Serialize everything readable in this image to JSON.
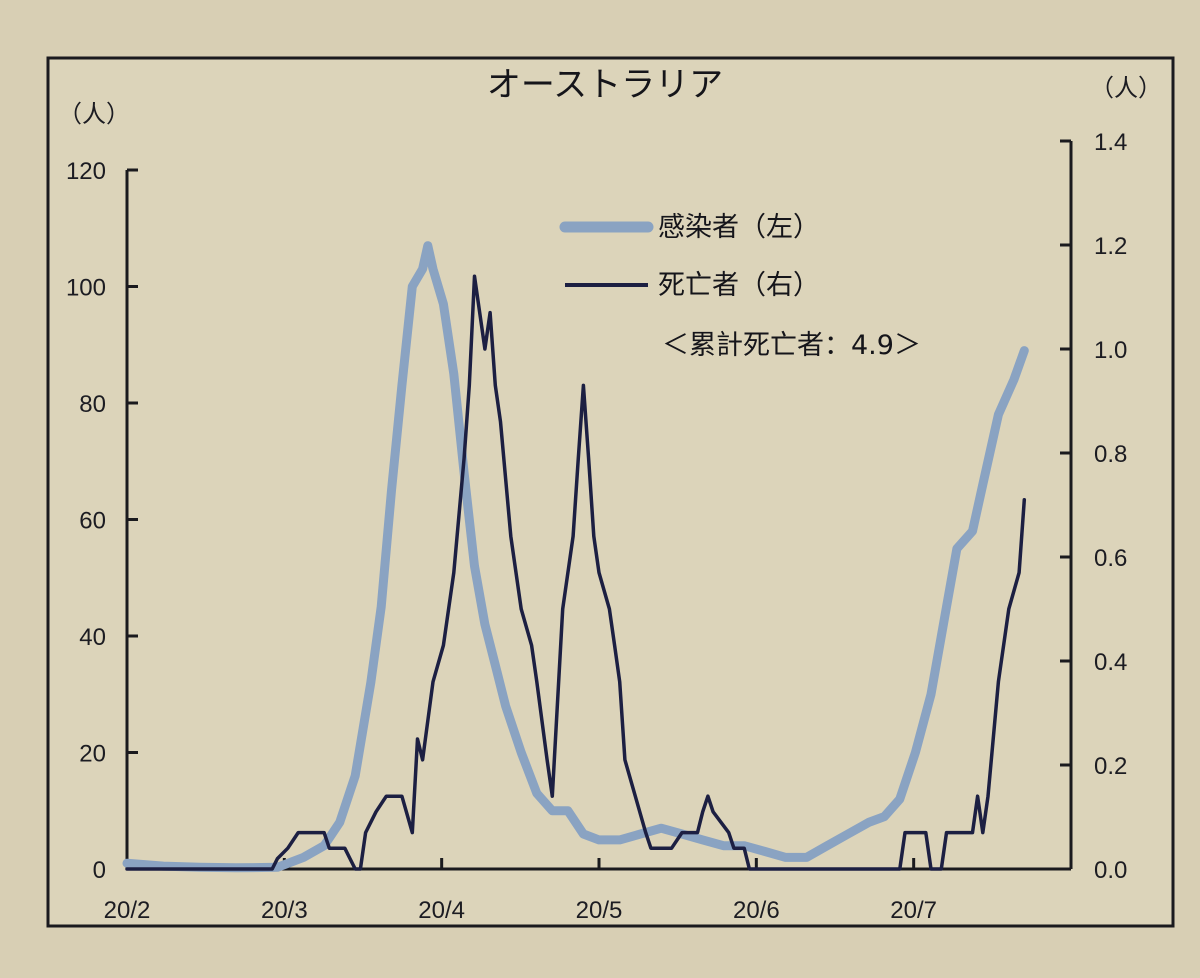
{
  "chart_data": {
    "type": "line",
    "title": "オーストラリア",
    "left_unit": "（人）",
    "right_unit": "（人）",
    "x_ticks": [
      "20/2",
      "20/3",
      "20/4",
      "20/5",
      "20/6",
      "20/7"
    ],
    "y_left": {
      "range": [
        0,
        120
      ],
      "ticks": [
        "0",
        "20",
        "40",
        "60",
        "80",
        "100",
        "120"
      ]
    },
    "y_right": {
      "range": [
        0,
        1.4
      ],
      "ticks": [
        "0.0",
        "0.2",
        "0.4",
        "0.6",
        "0.8",
        "1.0",
        "1.2",
        "1.4"
      ]
    },
    "grid": false,
    "legend_position": "top-center",
    "annotation": "＜累計死亡者：4.9＞",
    "series": [
      {
        "name": "感染者（左）",
        "axis": "left",
        "color": "#8aa3c2",
        "points": [
          [
            "2020-02-01",
            1
          ],
          [
            "2020-02-08",
            0.5
          ],
          [
            "2020-02-15",
            0.3
          ],
          [
            "2020-02-22",
            0.2
          ],
          [
            "2020-03-01",
            0.3
          ],
          [
            "2020-03-06",
            2
          ],
          [
            "2020-03-10",
            4
          ],
          [
            "2020-03-13",
            8
          ],
          [
            "2020-03-16",
            16
          ],
          [
            "2020-03-19",
            32
          ],
          [
            "2020-03-21",
            45
          ],
          [
            "2020-03-23",
            65
          ],
          [
            "2020-03-25",
            83
          ],
          [
            "2020-03-27",
            100
          ],
          [
            "2020-03-29",
            103
          ],
          [
            "2020-03-30",
            107
          ],
          [
            "2020-03-31",
            103
          ],
          [
            "2020-04-02",
            97
          ],
          [
            "2020-04-04",
            85
          ],
          [
            "2020-04-06",
            68
          ],
          [
            "2020-04-08",
            52
          ],
          [
            "2020-04-10",
            42
          ],
          [
            "2020-04-12",
            35
          ],
          [
            "2020-04-14",
            28
          ],
          [
            "2020-04-17",
            20
          ],
          [
            "2020-04-20",
            13
          ],
          [
            "2020-04-23",
            10
          ],
          [
            "2020-04-26",
            10
          ],
          [
            "2020-04-29",
            6
          ],
          [
            "2020-05-02",
            5
          ],
          [
            "2020-05-06",
            5
          ],
          [
            "2020-05-10",
            6
          ],
          [
            "2020-05-14",
            7
          ],
          [
            "2020-05-18",
            6
          ],
          [
            "2020-05-22",
            5
          ],
          [
            "2020-05-26",
            4
          ],
          [
            "2020-05-30",
            4
          ],
          [
            "2020-06-03",
            3
          ],
          [
            "2020-06-07",
            2
          ],
          [
            "2020-06-11",
            2
          ],
          [
            "2020-06-15",
            4
          ],
          [
            "2020-06-19",
            6
          ],
          [
            "2020-06-23",
            8
          ],
          [
            "2020-06-26",
            9
          ],
          [
            "2020-06-29",
            12
          ],
          [
            "2020-07-02",
            20
          ],
          [
            "2020-07-05",
            30
          ],
          [
            "2020-07-08",
            45
          ],
          [
            "2020-07-10",
            55
          ],
          [
            "2020-07-13",
            58
          ],
          [
            "2020-07-15",
            66
          ],
          [
            "2020-07-18",
            78
          ],
          [
            "2020-07-21",
            84
          ],
          [
            "2020-07-23",
            89
          ]
        ]
      },
      {
        "name": "死亡者（右）",
        "axis": "right",
        "color": "#1c1f42",
        "points": [
          [
            "2020-02-01",
            0
          ],
          [
            "2020-02-29",
            0
          ],
          [
            "2020-03-01",
            0.02
          ],
          [
            "2020-03-03",
            0.04
          ],
          [
            "2020-03-05",
            0.07
          ],
          [
            "2020-03-10",
            0.07
          ],
          [
            "2020-03-11",
            0.04
          ],
          [
            "2020-03-14",
            0.04
          ],
          [
            "2020-03-15",
            0.02
          ],
          [
            "2020-03-16",
            0
          ],
          [
            "2020-03-17",
            0
          ],
          [
            "2020-03-18",
            0.07
          ],
          [
            "2020-03-20",
            0.11
          ],
          [
            "2020-03-22",
            0.14
          ],
          [
            "2020-03-25",
            0.14
          ],
          [
            "2020-03-27",
            0.07
          ],
          [
            "2020-03-28",
            0.25
          ],
          [
            "2020-03-29",
            0.21
          ],
          [
            "2020-03-31",
            0.36
          ],
          [
            "2020-04-02",
            0.43
          ],
          [
            "2020-04-04",
            0.57
          ],
          [
            "2020-04-06",
            0.79
          ],
          [
            "2020-04-07",
            0.93
          ],
          [
            "2020-04-08",
            1.14
          ],
          [
            "2020-04-09",
            1.07
          ],
          [
            "2020-04-10",
            1.0
          ],
          [
            "2020-04-11",
            1.07
          ],
          [
            "2020-04-12",
            0.93
          ],
          [
            "2020-04-13",
            0.86
          ],
          [
            "2020-04-15",
            0.64
          ],
          [
            "2020-04-17",
            0.5
          ],
          [
            "2020-04-19",
            0.43
          ],
          [
            "2020-04-20",
            0.36
          ],
          [
            "2020-04-22",
            0.21
          ],
          [
            "2020-04-23",
            0.14
          ],
          [
            "2020-04-25",
            0.5
          ],
          [
            "2020-04-27",
            0.64
          ],
          [
            "2020-04-28",
            0.79
          ],
          [
            "2020-04-29",
            0.93
          ],
          [
            "2020-04-30",
            0.79
          ],
          [
            "2020-05-01",
            0.64
          ],
          [
            "2020-05-02",
            0.57
          ],
          [
            "2020-05-04",
            0.5
          ],
          [
            "2020-05-05",
            0.43
          ],
          [
            "2020-05-06",
            0.36
          ],
          [
            "2020-05-07",
            0.21
          ],
          [
            "2020-05-09",
            0.14
          ],
          [
            "2020-05-11",
            0.07
          ],
          [
            "2020-05-12",
            0.04
          ],
          [
            "2020-05-16",
            0.04
          ],
          [
            "2020-05-18",
            0.07
          ],
          [
            "2020-05-21",
            0.07
          ],
          [
            "2020-05-22",
            0.11
          ],
          [
            "2020-05-23",
            0.14
          ],
          [
            "2020-05-24",
            0.11
          ],
          [
            "2020-05-27",
            0.07
          ],
          [
            "2020-05-28",
            0.04
          ],
          [
            "2020-05-30",
            0.04
          ],
          [
            "2020-05-31",
            0
          ],
          [
            "2020-06-29",
            0
          ],
          [
            "2020-06-30",
            0.07
          ],
          [
            "2020-07-04",
            0.07
          ],
          [
            "2020-07-05",
            0
          ],
          [
            "2020-07-07",
            0
          ],
          [
            "2020-07-08",
            0.07
          ],
          [
            "2020-07-13",
            0.07
          ],
          [
            "2020-07-14",
            0.14
          ],
          [
            "2020-07-15",
            0.07
          ],
          [
            "2020-07-16",
            0.14
          ],
          [
            "2020-07-18",
            0.36
          ],
          [
            "2020-07-20",
            0.5
          ],
          [
            "2020-07-22",
            0.57
          ],
          [
            "2020-07-23",
            0.71
          ]
        ]
      }
    ]
  }
}
